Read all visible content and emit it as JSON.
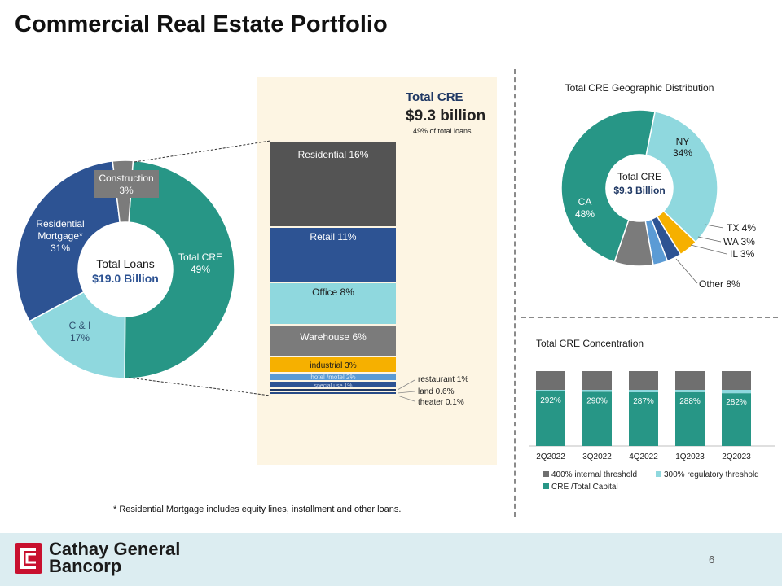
{
  "title": "Commercial Real Estate Portfolio",
  "footnote": "* Residential Mortgage includes equity lines, installment and other loans.",
  "footer": {
    "brand_line1": "Cathay General",
    "brand_line2": "Bancorp",
    "page_number": "6"
  },
  "colors": {
    "teal": "#279686",
    "light_teal": "#8fd8de",
    "navy": "#2d5393",
    "gray": "#7b7b7b",
    "dark_gray": "#545454",
    "orange": "#f6b000",
    "blue": "#5b9bd5",
    "panel": "#fdf5e3",
    "brand_red": "#c8102e"
  },
  "chart_data": [
    {
      "type": "pie",
      "title": "",
      "center_label": {
        "line1": "Total Loans",
        "line2": "$19.0 Billion"
      },
      "slices": [
        {
          "label": "Total CRE",
          "value": 49,
          "display": "49%",
          "color": "#279686"
        },
        {
          "label": "C & I",
          "value": 17,
          "display": "17%",
          "color": "#8fd8de"
        },
        {
          "label": "Residential Mortgage*",
          "value": 31,
          "display": "31%",
          "color": "#2d5393"
        },
        {
          "label": "Construction",
          "value": 3,
          "display": "3%",
          "color": "#7b7b7b"
        }
      ]
    },
    {
      "type": "bar",
      "header": {
        "title": "Total CRE",
        "amount": "$9.3 billion",
        "note": "49% of total loans"
      },
      "segments": [
        {
          "label": "Residential",
          "value": 16,
          "display": "16%",
          "color": "#545454",
          "text_color": "#ffffff"
        },
        {
          "label": "Retail",
          "value": 11,
          "display": "11%",
          "color": "#2d5393",
          "text_color": "#ffffff"
        },
        {
          "label": "Office",
          "value": 8,
          "display": "8%",
          "color": "#8fd8de",
          "text_color": "#1a1a1a"
        },
        {
          "label": "Warehouse",
          "value": 6,
          "display": "6%",
          "color": "#7b7b7b",
          "text_color": "#ffffff"
        },
        {
          "label": "industrial",
          "value": 3,
          "display": "3%",
          "color": "#f6b000",
          "text_color": "#1a1a1a"
        },
        {
          "label": "hotel /motel",
          "value": 2,
          "display": "2%",
          "color": "#5b9bd5",
          "text_color": "#dce8f5"
        },
        {
          "label": "special use",
          "value": 1,
          "display": "1%",
          "color": "#2d5393",
          "text_color": "#c7d3ea"
        },
        {
          "label": "restaurant",
          "value": 1,
          "display": "1%",
          "color": "#1f3864",
          "text_color": "#1a1a1a"
        },
        {
          "label": "land",
          "value": 0.6,
          "display": "0.6%",
          "color": "#274a86",
          "text_color": "#1a1a1a"
        },
        {
          "label": "theater",
          "value": 0.1,
          "display": "0.1%",
          "color": "#0f1f3d",
          "text_color": "#1a1a1a"
        }
      ]
    },
    {
      "type": "pie",
      "title": "Total CRE Geographic Distribution",
      "center_label": {
        "line1": "Total CRE",
        "line2": "$9.3 Billion"
      },
      "slices": [
        {
          "label": "NY",
          "value": 34,
          "display": "34%",
          "color": "#8fd8de"
        },
        {
          "label": "TX",
          "value": 4,
          "display": "4%",
          "color": "#f6b000"
        },
        {
          "label": "WA",
          "value": 3,
          "display": "3%",
          "color": "#2d5393"
        },
        {
          "label": "IL",
          "value": 3,
          "display": "3%",
          "color": "#5b9bd5"
        },
        {
          "label": "Other",
          "value": 8,
          "display": "8%",
          "color": "#7b7b7b"
        },
        {
          "label": "CA",
          "value": 48,
          "display": "48%",
          "color": "#279686"
        }
      ]
    },
    {
      "type": "bar",
      "stacked": true,
      "title": "Total CRE Concentration",
      "categories": [
        "2Q2022",
        "3Q2022",
        "4Q2022",
        "1Q2023",
        "2Q2023"
      ],
      "ylim": [
        0,
        400
      ],
      "series": [
        {
          "name": "CRE /Total Capital",
          "values": [
            292,
            290,
            287,
            288,
            282
          ],
          "labels": [
            "292%",
            "290%",
            "287%",
            "288%",
            "282%"
          ],
          "color": "#279686"
        },
        {
          "name": "300% regulatory threshold",
          "values": [
            8,
            10,
            13,
            12,
            18
          ],
          "color": "#8fd8de"
        },
        {
          "name": "400% internal threshold",
          "values": [
            100,
            100,
            100,
            100,
            100
          ],
          "color": "#6f6f6f"
        }
      ],
      "legend_order": [
        "400% internal threshold",
        "300% regulatory threshold",
        "CRE /Total Capital"
      ]
    }
  ]
}
